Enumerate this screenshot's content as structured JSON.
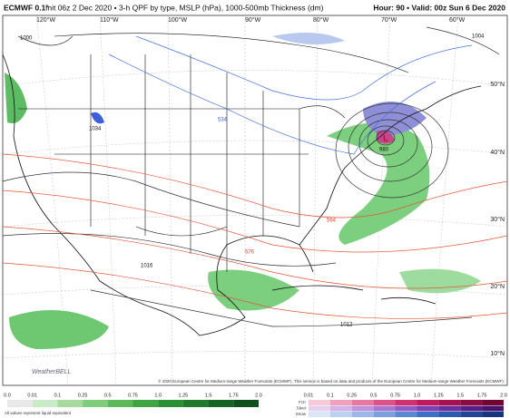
{
  "header": {
    "model": "ECMWF 0.1°",
    "title": "Init 06z 2 Dec 2020 • 3-h QPF by type, MSLP (hPa), 1000-500mb Thickness (dm)",
    "valid": "Hour: 90 • Valid: 00z Sun 6 Dec 2020"
  },
  "map": {
    "lon_labels": [
      "120°W",
      "110°W",
      "100°W",
      "90°W",
      "80°W",
      "70°W",
      "60°W"
    ],
    "lat_labels": [
      "50°N",
      "40°N",
      "30°N",
      "20°N",
      "10°N"
    ],
    "pressure_labels": [
      "1000",
      "1034",
      "1016",
      "1012",
      "1004",
      "980"
    ],
    "thickness_labels": [
      "534",
      "576",
      "564"
    ]
  },
  "logo": "WeatherBELL",
  "footer": {
    "copyright": "© 2020 European Centre for Medium-range Weather Forecasts (ECMWF). This service is based on data and products of the European Centre for Medium-range Weather Forecasts (ECMWF)."
  },
  "legend": {
    "rain_ticks": [
      "0.0",
      "0.01",
      "0.1",
      "0.25",
      "0.5",
      "0.75",
      "1.0",
      "1.25",
      "1.5",
      "1.75",
      "2.0"
    ],
    "note": "All values represent liquid equivalent",
    "types": [
      "Frzr",
      "Sleet",
      "Snow"
    ],
    "type_ticks": [
      "0.01",
      "0.1",
      "0.25",
      "0.5",
      "0.75",
      "1.0",
      "1.25",
      "1.5",
      "1.75",
      "2.0"
    ]
  }
}
